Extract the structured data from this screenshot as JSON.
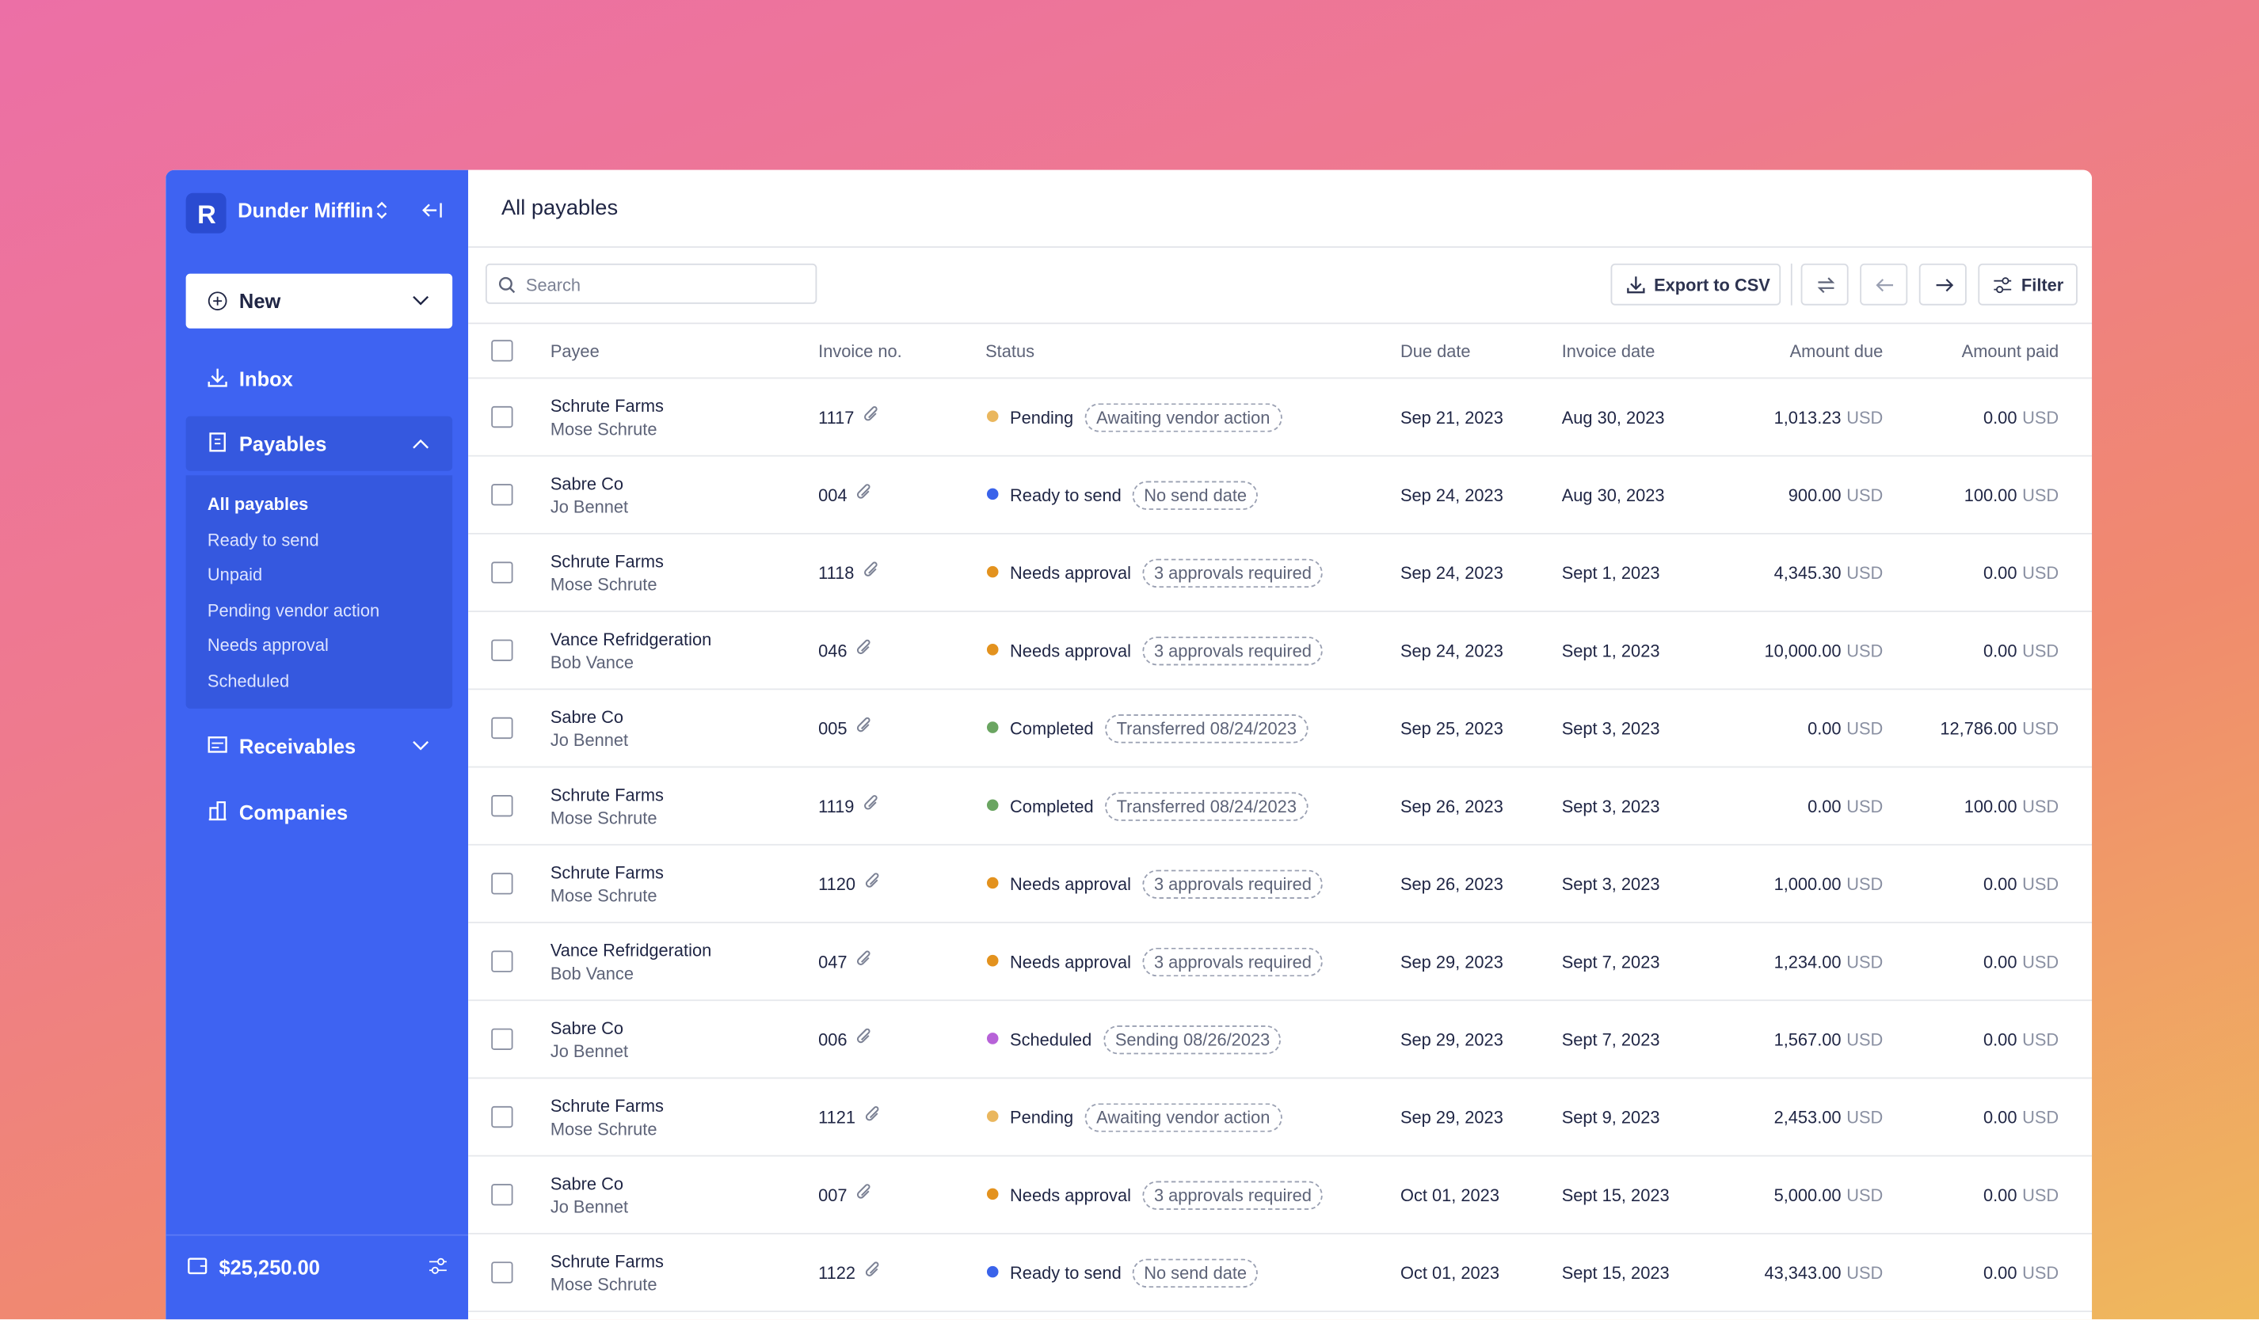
{
  "sidebar": {
    "workspace": "Dunder Mifflin",
    "new_button": "New",
    "inbox": "Inbox",
    "payables": "Payables",
    "payables_sub": [
      "All payables",
      "Ready to send",
      "Unpaid",
      "Pending vendor action",
      "Needs approval",
      "Scheduled"
    ],
    "receivables": "Receivables",
    "companies": "Companies",
    "balance": "$25,250.00"
  },
  "main": {
    "title": "All payables",
    "search_placeholder": "Search",
    "export_button": "Export to CSV",
    "filter_button": "Filter",
    "table": {
      "headers": [
        "Payee",
        "Invoice no.",
        "Status",
        "Due date",
        "Invoice date",
        "Amount due",
        "Amount paid"
      ],
      "rows": [
        {
          "payee": "Schrute Farms",
          "contact": "Mose Schrute",
          "invoice": "1117",
          "status": "Pending",
          "status_color": "#eab75e",
          "tag": "Awaiting vendor action",
          "due": "Sep 21, 2023",
          "invoice_date": "Aug 30, 2023",
          "amount_due": "1,013.23",
          "amount_due_currency": "USD",
          "amount_paid": "0.00",
          "amount_paid_currency": "USD"
        },
        {
          "payee": "Sabre Co",
          "contact": "Jo Bennet",
          "invoice": "004",
          "status": "Ready to send",
          "status_color": "#3a63ea",
          "tag": "No send date",
          "due": "Sep 24, 2023",
          "invoice_date": "Aug 30, 2023",
          "amount_due": "900.00",
          "amount_due_currency": "USD",
          "amount_paid": "100.00",
          "amount_paid_currency": "USD"
        },
        {
          "payee": "Schrute Farms",
          "contact": "Mose Schrute",
          "invoice": "1118",
          "status": "Needs approval",
          "status_color": "#e3921e",
          "tag": "3 approvals required",
          "due": "Sep 24, 2023",
          "invoice_date": "Sept 1, 2023",
          "amount_due": "4,345.30",
          "amount_due_currency": "USD",
          "amount_paid": "0.00",
          "amount_paid_currency": "USD"
        },
        {
          "payee": "Vance Refridgeration",
          "contact": "Bob Vance",
          "invoice": "046",
          "status": "Needs approval",
          "status_color": "#e3921e",
          "tag": "3 approvals required",
          "due": "Sep 24, 2023",
          "invoice_date": "Sept 1, 2023",
          "amount_due": "10,000.00",
          "amount_due_currency": "USD",
          "amount_paid": "0.00",
          "amount_paid_currency": "USD"
        },
        {
          "payee": "Sabre Co",
          "contact": "Jo Bennet",
          "invoice": "005",
          "status": "Completed",
          "status_color": "#6aa561",
          "tag": "Transferred 08/24/2023",
          "due": "Sep 25, 2023",
          "invoice_date": "Sept 3, 2023",
          "amount_due": "0.00",
          "amount_due_currency": "USD",
          "amount_paid": "12,786.00",
          "amount_paid_currency": "USD"
        },
        {
          "payee": "Schrute Farms",
          "contact": "Mose Schrute",
          "invoice": "1119",
          "status": "Completed",
          "status_color": "#6aa561",
          "tag": "Transferred 08/24/2023",
          "due": "Sep 26, 2023",
          "invoice_date": "Sept 3, 2023",
          "amount_due": "0.00",
          "amount_due_currency": "USD",
          "amount_paid": "100.00",
          "amount_paid_currency": "USD"
        },
        {
          "payee": "Schrute Farms",
          "contact": "Mose Schrute",
          "invoice": "1120",
          "status": "Needs approval",
          "status_color": "#e3921e",
          "tag": "3 approvals required",
          "due": "Sep 26, 2023",
          "invoice_date": "Sept 3, 2023",
          "amount_due": "1,000.00",
          "amount_due_currency": "USD",
          "amount_paid": "0.00",
          "amount_paid_currency": "USD"
        },
        {
          "payee": "Vance Refridgeration",
          "contact": "Bob Vance",
          "invoice": "047",
          "status": "Needs approval",
          "status_color": "#e3921e",
          "tag": "3 approvals required",
          "due": "Sep 29, 2023",
          "invoice_date": "Sept 7, 2023",
          "amount_due": "1,234.00",
          "amount_due_currency": "USD",
          "amount_paid": "0.00",
          "amount_paid_currency": "USD"
        },
        {
          "payee": "Sabre Co",
          "contact": "Jo Bennet",
          "invoice": "006",
          "status": "Scheduled",
          "status_color": "#b762d8",
          "tag": "Sending 08/26/2023",
          "due": "Sep 29, 2023",
          "invoice_date": "Sept 7, 2023",
          "amount_due": "1,567.00",
          "amount_due_currency": "USD",
          "amount_paid": "0.00",
          "amount_paid_currency": "USD"
        },
        {
          "payee": "Schrute Farms",
          "contact": "Mose Schrute",
          "invoice": "1121",
          "status": "Pending",
          "status_color": "#eab75e",
          "tag": "Awaiting vendor action",
          "due": "Sep 29, 2023",
          "invoice_date": "Sept 9, 2023",
          "amount_due": "2,453.00",
          "amount_due_currency": "USD",
          "amount_paid": "0.00",
          "amount_paid_currency": "USD"
        },
        {
          "payee": "Sabre Co",
          "contact": "Jo Bennet",
          "invoice": "007",
          "status": "Needs approval",
          "status_color": "#e3921e",
          "tag": "3 approvals required",
          "due": "Oct 01, 2023",
          "invoice_date": "Sept 15, 2023",
          "amount_due": "5,000.00",
          "amount_due_currency": "USD",
          "amount_paid": "0.00",
          "amount_paid_currency": "USD"
        },
        {
          "payee": "Schrute Farms",
          "contact": "Mose Schrute",
          "invoice": "1122",
          "status": "Ready to send",
          "status_color": "#3a63ea",
          "tag": "No send date",
          "due": "Oct 01, 2023",
          "invoice_date": "Sept 15, 2023",
          "amount_due": "43,343.00",
          "amount_due_currency": "USD",
          "amount_paid": "0.00",
          "amount_paid_currency": "USD"
        }
      ]
    }
  }
}
